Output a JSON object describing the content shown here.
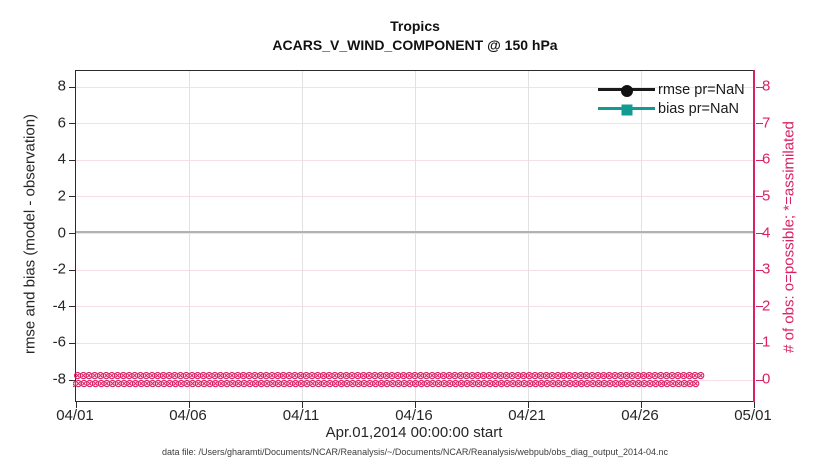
{
  "figure": {
    "title_line1": "Tropics",
    "title_line2": "ACARS_V_WIND_COMPONENT @ 150 hPa",
    "xlabel": "Apr.01,2014 00:00:00 start",
    "footer": "data file: /Users/gharamti/Documents/NCAR/Reanalysis/~/Documents/NCAR/Reanalysis/webpub/obs_diag_output_2014-04.nc"
  },
  "axes": {
    "left": {
      "label": "rmse and bias (model - observation)",
      "ticks": [
        "8",
        "6",
        "4",
        "2",
        "0",
        "-2",
        "-4",
        "-6",
        "-8"
      ]
    },
    "right": {
      "label": "# of obs: o=possible; *=assimilated",
      "ticks": [
        "8",
        "7",
        "6",
        "5",
        "4",
        "3",
        "2",
        "1",
        "0"
      ],
      "color": "#da2163"
    },
    "x": {
      "ticks": [
        "04/01",
        "04/06",
        "04/11",
        "04/16",
        "04/21",
        "04/26",
        "05/01"
      ]
    }
  },
  "legend": {
    "items": [
      {
        "label": "rmse pr=NaN",
        "color": "#1a1a1a",
        "marker": "circle"
      },
      {
        "label": "bias pr=NaN",
        "color": "#139a93",
        "marker": "square"
      }
    ]
  },
  "markers": {
    "possible_glyph": "o",
    "assimilated_glyph": "*",
    "combined_glyph": "⊗",
    "color": "#da2163",
    "plotted_value": 0
  },
  "colors": {
    "accent_pink": "#da2163",
    "bias_teal": "#139a93",
    "zero_line_gray": "#b2b2b2",
    "grid_pink": "#f8dee8",
    "grid_gray": "#e1e1e4",
    "axis_dark": "#262626"
  },
  "chart_data": {
    "type": "line",
    "title": "Tropics",
    "subtitle": "ACARS_V_WIND_COMPONENT @ 150 hPa",
    "xlabel": "Apr.01,2014 00:00:00 start",
    "ylabel_left": "rmse and bias (model - observation)",
    "ylabel_right": "# of obs: o=possible; *=assimilated",
    "x_ticks": [
      "04/01",
      "04/06",
      "04/11",
      "04/16",
      "04/21",
      "04/26",
      "05/01"
    ],
    "ylim_left": [
      -9,
      9
    ],
    "yticks_left": [
      8,
      6,
      4,
      2,
      0,
      -2,
      -4,
      -6,
      -8
    ],
    "ylim_right": [
      -0.5,
      8.5
    ],
    "yticks_right": [
      8,
      7,
      6,
      5,
      4,
      3,
      2,
      1,
      0
    ],
    "grid": "faint pink horizontal lines at right-axis ticks; faint gray vertical lines at interior x ticks",
    "legend_position": "top-right inside, no box",
    "zero_reference_line": 0,
    "series": [
      {
        "name": "rmse pr=NaN",
        "values": null,
        "note": "all values NaN — no curve drawn"
      },
      {
        "name": "bias pr=NaN",
        "values": null,
        "note": "all values NaN — no curve drawn"
      }
    ],
    "obs_counts": {
      "possible": 0,
      "assimilated": 0,
      "note": "overlapping o (possible) and * (assimilated) markers plotted at 0 on the right axis for every time step from 04/01 through 05/01"
    }
  }
}
